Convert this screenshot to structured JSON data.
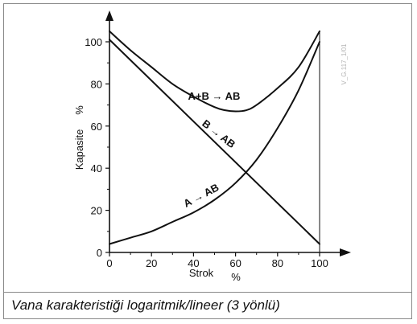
{
  "caption": "Vana karakteristiği logaritmik/lineer (3 yönlü)",
  "side_code": "V_G.117_1/01",
  "chart_data": {
    "type": "line",
    "xlabel": "Strok",
    "xunit": "%",
    "ylabel": "Kapasite",
    "yunit": "%",
    "xlim": [
      0,
      100
    ],
    "ylim": [
      0,
      105
    ],
    "xticks": [
      0,
      20,
      40,
      60,
      80,
      100
    ],
    "yticks": [
      0,
      20,
      40,
      60,
      80,
      100
    ],
    "grid": false,
    "series": [
      {
        "name": "A+B → AB",
        "x": [
          0,
          10,
          20,
          30,
          40,
          50,
          55,
          60,
          65,
          70,
          80,
          90,
          100
        ],
        "y": [
          105,
          96,
          88,
          80,
          74,
          69,
          67.5,
          67,
          67.5,
          70,
          78,
          88,
          105
        ]
      },
      {
        "name": "B → AB",
        "x": [
          0,
          100
        ],
        "y": [
          101,
          4
        ]
      },
      {
        "name": "A → AB",
        "x": [
          0,
          10,
          20,
          30,
          40,
          50,
          60,
          70,
          80,
          90,
          100
        ],
        "y": [
          4,
          7,
          10,
          14.5,
          19,
          25,
          33,
          44,
          59,
          77,
          100
        ]
      }
    ]
  }
}
